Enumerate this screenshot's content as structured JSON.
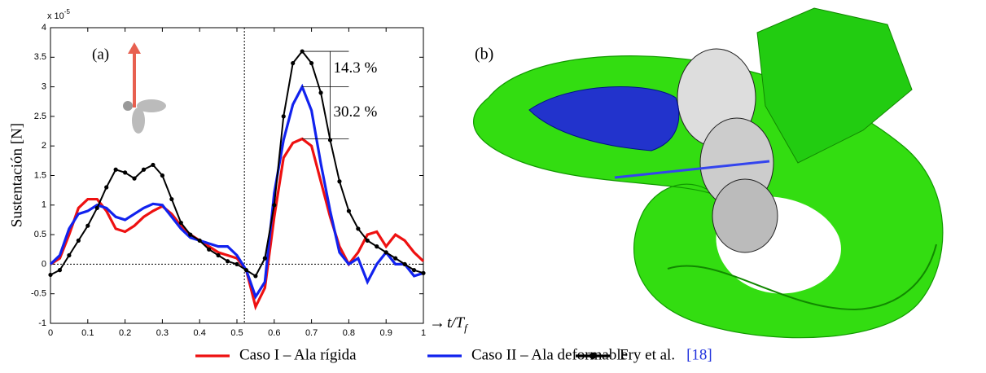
{
  "chart_data": {
    "type": "line",
    "panel_label": "(a)",
    "y_label": "Sustentación [N]",
    "y_multiplier": {
      "base": "x 10",
      "exponent": "-5"
    },
    "x_label": {
      "text": "t/T",
      "subscript": "f"
    },
    "x": [
      0,
      0.025,
      0.05,
      0.075,
      0.1,
      0.125,
      0.15,
      0.175,
      0.2,
      0.225,
      0.25,
      0.275,
      0.3,
      0.325,
      0.35,
      0.375,
      0.4,
      0.425,
      0.45,
      0.475,
      0.5,
      0.525,
      0.55,
      0.575,
      0.6,
      0.625,
      0.65,
      0.675,
      0.7,
      0.725,
      0.75,
      0.775,
      0.8,
      0.825,
      0.85,
      0.875,
      0.9,
      0.925,
      0.95,
      0.975,
      1
    ],
    "series": [
      {
        "name": "Caso I – Ala rígida",
        "color": "#ee1111",
        "markers": false,
        "values": [
          0,
          0.1,
          0.5,
          0.95,
          1.1,
          1.1,
          0.9,
          0.6,
          0.55,
          0.65,
          0.8,
          0.9,
          0.98,
          0.85,
          0.65,
          0.5,
          0.4,
          0.3,
          0.2,
          0.15,
          0.1,
          -0.1,
          -0.72,
          -0.4,
          0.8,
          1.8,
          2.05,
          2.12,
          2.0,
          1.4,
          0.8,
          0.3,
          0,
          0.2,
          0.5,
          0.55,
          0.3,
          0.5,
          0.4,
          0.2,
          0.05
        ]
      },
      {
        "name": "Caso II – Ala deformable",
        "color": "#1122ee",
        "markers": false,
        "values": [
          0,
          0.15,
          0.6,
          0.85,
          0.9,
          1.0,
          0.95,
          0.8,
          0.75,
          0.85,
          0.95,
          1.02,
          1.0,
          0.8,
          0.6,
          0.45,
          0.4,
          0.35,
          0.3,
          0.3,
          0.15,
          -0.1,
          -0.55,
          -0.3,
          1.2,
          2.1,
          2.7,
          3.0,
          2.6,
          1.7,
          0.9,
          0.2,
          0,
          0.1,
          -0.3,
          0,
          0.2,
          0,
          0,
          -0.2,
          -0.15
        ]
      },
      {
        "name": "Fry et al.",
        "color": "#000000",
        "markers": true,
        "values": [
          -0.18,
          -0.1,
          0.15,
          0.4,
          0.65,
          0.95,
          1.3,
          1.6,
          1.55,
          1.45,
          1.6,
          1.68,
          1.5,
          1.1,
          0.7,
          0.5,
          0.4,
          0.25,
          0.15,
          0.05,
          0,
          -0.1,
          -0.2,
          0.1,
          1.0,
          2.5,
          3.4,
          3.6,
          3.4,
          2.9,
          2.1,
          1.4,
          0.9,
          0.6,
          0.4,
          0.3,
          0.2,
          0.1,
          0,
          -0.1,
          -0.15
        ]
      }
    ],
    "legend_citation": "[18]",
    "reference_lines": {
      "x": 0.52,
      "y": 0
    },
    "annotations": [
      "14.3 %",
      "30.2 %"
    ],
    "xlim": [
      0,
      1
    ],
    "xticks": [
      0,
      0.1,
      0.2,
      0.3,
      0.4,
      0.5,
      0.6,
      0.7,
      0.8,
      0.9,
      1
    ],
    "ylim": [
      -1,
      4
    ],
    "yticks": [
      -1,
      -0.5,
      0,
      0.5,
      1,
      1.5,
      2,
      2.5,
      3,
      3.5,
      4
    ],
    "grid": false
  },
  "panel_b": {
    "label": "(b)"
  }
}
